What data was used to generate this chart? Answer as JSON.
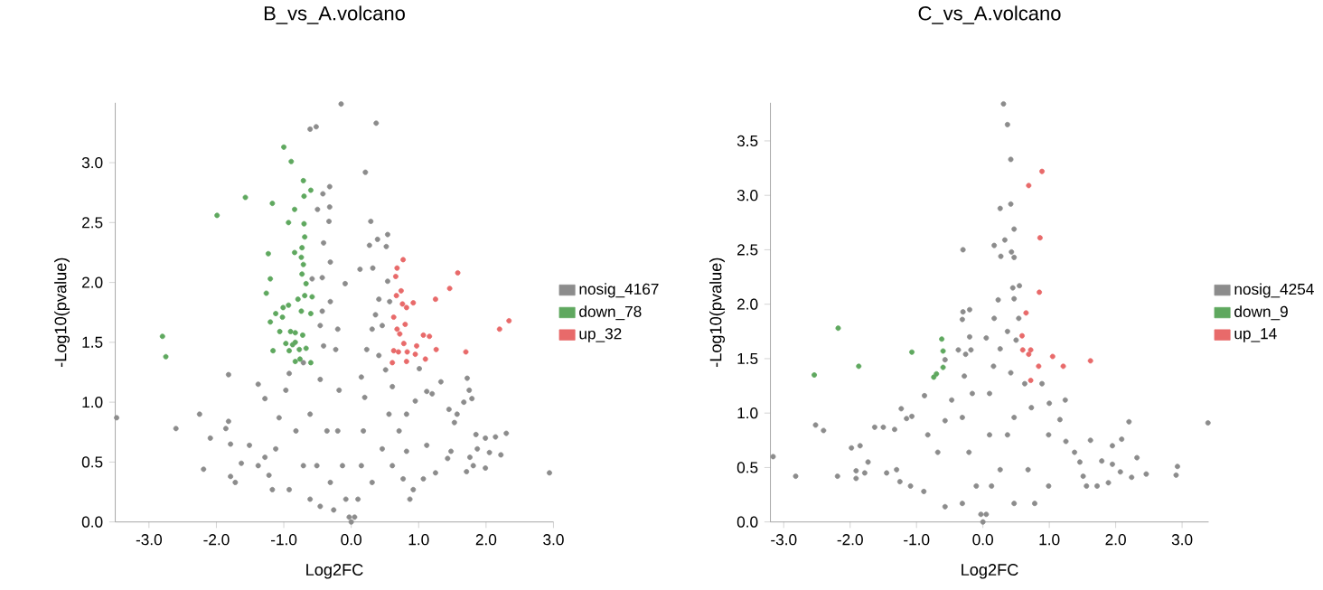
{
  "chart_data": [
    {
      "type": "scatter",
      "title": "B_vs_A.volcano",
      "xlabel": "Log2FC",
      "ylabel": "-Log10(pvalue)",
      "xlim": [
        -3.5,
        3.0
      ],
      "ylim": [
        0,
        3.5
      ],
      "xticks": [
        {
          "value": -3,
          "label": "-3.0"
        },
        {
          "value": -2,
          "label": "-2.0"
        },
        {
          "value": -1,
          "label": "-1.0"
        },
        {
          "value": 0,
          "label": "0.0"
        },
        {
          "value": 1,
          "label": "1.0"
        },
        {
          "value": 2,
          "label": "2.0"
        },
        {
          "value": 3,
          "label": "3.0"
        }
      ],
      "yticks": [
        {
          "value": 0,
          "label": "0.0"
        },
        0.5,
        {
          "value": 1,
          "label": "1.0"
        },
        1.5,
        {
          "value": 2,
          "label": "2.0"
        },
        2.5,
        {
          "value": 3,
          "label": "3.0"
        }
      ],
      "marker": "circle",
      "legend": "right",
      "series": [
        {
          "name": "nosig_4167",
          "color": "#8c8c8c",
          "x": [
            -0.15,
            -0.52,
            -0.61,
            0.37,
            0.21,
            -0.32,
            -0.42,
            -0.32,
            -0.5,
            -0.33,
            0.29,
            0.54,
            0.39,
            0.52,
            -0.41,
            0.27,
            -0.31,
            0.13,
            0.32,
            -0.09,
            0.54,
            -0.43,
            -0.58,
            0.41,
            0.57,
            -3.48,
            -2.6,
            -2.25,
            -1.82,
            -1.82,
            -2.09,
            -2.19,
            -1.86,
            -1.79,
            -1.79,
            -1.72,
            -1.63,
            -1.51,
            -1.38,
            -1.28,
            -1.28,
            2.94,
            2.3,
            2.14,
            1.99,
            1.85,
            1.87,
            2.05,
            2.22,
            1.99,
            1.71,
            1.81,
            1.76,
            1.72,
            1.75,
            1.79,
            1.67,
            1.57,
            1.53,
            1.45,
            1.33,
            1.2,
            1.12,
            1.01,
            0.95,
            0.82,
            1.48,
            1.43,
            1.25,
            1.07,
            0.92,
            0.77,
            1.12,
            -0.92,
            -1.17,
            -1.22,
            -1.38,
            -1.12,
            -1.07,
            -0.97,
            -0.92,
            -0.71,
            -0.61,
            -0.46,
            -0.36,
            -0.46,
            -0.41,
            -0.46,
            -0.43,
            -0.31,
            -0.2,
            -0.23,
            -0.18,
            -0.2,
            -0.13,
            -0.08,
            -0.03,
            0,
            0.05,
            0.1,
            0.15,
            0.18,
            0.2,
            0.15,
            0.23,
            0.31,
            0.36,
            0.46,
            0.41,
            0.51,
            0.61,
            0.56,
            0.46,
            0.31,
            0.61,
            0.71,
            0.82,
            0.87,
            -0.51,
            -0.71,
            -0.82,
            -0.61,
            -0.31,
            -0.26
          ],
          "values": [
            3.49,
            3.3,
            3.28,
            3.33,
            2.92,
            2.8,
            2.74,
            2.63,
            2.61,
            2.51,
            2.51,
            2.4,
            2.36,
            2.3,
            2.33,
            2.31,
            2.17,
            2.11,
            2.12,
            1.99,
            2.01,
            2.04,
            2.03,
            1.86,
            1.84,
            0.87,
            0.78,
            0.9,
            1.23,
            0.84,
            0.7,
            0.44,
            0.78,
            0.65,
            0.38,
            0.33,
            0.49,
            0.64,
            1.15,
            1.03,
            0.54,
            0.41,
            0.74,
            0.71,
            0.7,
            0.73,
            0.61,
            0.58,
            0.56,
            0.45,
            0.42,
            0.47,
            0.54,
            1.2,
            1.1,
            1.03,
            1.0,
            0.9,
            0.83,
            0.94,
            1.17,
            1.07,
            1.09,
            1.28,
            1.01,
            0.9,
            0.59,
            0.53,
            0.41,
            0.36,
            0.27,
            0.36,
            0.64,
            0.27,
            0.27,
            0.39,
            0.47,
            0.61,
            0.87,
            1.1,
            1.24,
            1.33,
            0.19,
            0.13,
            0.76,
            1.19,
            1.47,
            1.64,
            1.76,
            1.84,
            1.61,
            1.44,
            1.1,
            0.76,
            0.47,
            0.19,
            0.04,
            0,
            0.04,
            0.19,
            0.47,
            0.76,
            1.04,
            1.21,
            1.44,
            1.61,
            1.73,
            1.64,
            1.39,
            1.27,
            1.13,
            0.9,
            0.61,
            0.33,
            0.47,
            0.76,
            0.59,
            0.19,
            0.47,
            0.47,
            0.76,
            0.9,
            0.33,
            0.1
          ]
        },
        {
          "name": "down_78",
          "color": "#5fa85f",
          "x": [
            -1.0,
            -0.89,
            -1.57,
            -1.17,
            -1.99,
            -0.71,
            -0.6,
            -0.7,
            -0.84,
            -0.93,
            -0.7,
            -0.69,
            -0.73,
            -0.74,
            -1.23,
            -0.84,
            -0.71,
            -1.2,
            -0.73,
            -0.67,
            -1.26,
            -0.79,
            -0.58,
            -0.69,
            -0.93,
            -1.01,
            -1.12,
            -0.74,
            -0.6,
            -1.2,
            -1.02,
            -1.06,
            -0.9,
            -0.83,
            -0.72,
            -0.83,
            -1.16,
            -0.92,
            -0.77,
            -0.67,
            -0.83,
            -0.76,
            -0.6,
            -2.8,
            -2.75,
            -0.87,
            -0.97
          ],
          "values": [
            3.13,
            3.01,
            2.71,
            2.66,
            2.56,
            2.85,
            2.77,
            2.72,
            2.61,
            2.5,
            2.49,
            2.38,
            2.29,
            2.21,
            2.24,
            2.25,
            2.15,
            2.03,
            2.07,
            1.99,
            1.91,
            1.86,
            1.88,
            1.89,
            1.81,
            1.79,
            1.74,
            1.76,
            1.74,
            1.67,
            1.71,
            1.59,
            1.59,
            1.58,
            1.56,
            1.5,
            1.43,
            1.43,
            1.44,
            1.45,
            1.34,
            1.36,
            1.33,
            1.55,
            1.38,
            1.48,
            1.49
          ]
        },
        {
          "name": "up_32",
          "color": "#e86a6a",
          "x": [
            0.77,
            0.68,
            0.66,
            1.58,
            1.46,
            0.74,
            0.67,
            1.25,
            0.92,
            0.76,
            0.82,
            2.34,
            2.2,
            0.63,
            0.8,
            0.68,
            0.72,
            1.07,
            1.16,
            0.78,
            0.97,
            1.26,
            0.63,
            0.7,
            0.83,
            0.95,
            1.7,
            0.61,
            0.82,
            1.1
          ],
          "values": [
            2.19,
            2.12,
            2.05,
            2.08,
            1.95,
            1.93,
            1.89,
            1.86,
            1.83,
            1.82,
            1.79,
            1.68,
            1.61,
            1.71,
            1.65,
            1.61,
            1.57,
            1.56,
            1.55,
            1.49,
            1.47,
            1.44,
            1.43,
            1.42,
            1.42,
            1.4,
            1.42,
            1.33,
            1.34,
            1.36
          ]
        }
      ]
    },
    {
      "type": "scatter",
      "title": "C_vs_A.volcano",
      "xlabel": "Log2FC",
      "ylabel": "-Log10(pvalue)",
      "xlim": [
        -3.2,
        3.4
      ],
      "ylim": [
        0,
        3.85
      ],
      "xticks": [
        {
          "value": -3,
          "label": "-3.0"
        },
        {
          "value": -2,
          "label": "-2.0"
        },
        {
          "value": -1,
          "label": "-1.0"
        },
        {
          "value": 0,
          "label": "0.0"
        },
        {
          "value": 1,
          "label": "1.0"
        },
        {
          "value": 2,
          "label": "2.0"
        },
        {
          "value": 3,
          "label": "3.0"
        }
      ],
      "yticks": [
        {
          "value": 0,
          "label": "0.0"
        },
        0.5,
        {
          "value": 1,
          "label": "1.0"
        },
        1.5,
        {
          "value": 2,
          "label": "2.0"
        },
        2.5,
        {
          "value": 3,
          "label": "3.0"
        },
        3.5
      ],
      "marker": "circle",
      "legend": "right",
      "series": [
        {
          "name": "nosig_4254",
          "color": "#8c8c8c",
          "x": [
            0.31,
            0.37,
            0.42,
            0.42,
            0.26,
            0.33,
            0.47,
            0.17,
            -0.3,
            0.27,
            0.43,
            0.47,
            0.55,
            0.45,
            0.23,
            0.47,
            -0.2,
            -0.3,
            -0.31,
            0.17,
            0.05,
            -0.2,
            0.5,
            0.54,
            -0.37,
            -0.18,
            -0.57,
            -0.26,
            -0.28,
            -0.88,
            -1.23,
            -1.15,
            -1.07,
            -1.63,
            -1.5,
            -1.33,
            -2.52,
            -2.4,
            -3.16,
            -2.82,
            -2.19,
            -1.98,
            -1.85,
            -1.91,
            -1.91,
            -1.78,
            -1.73,
            -1.45,
            -1.3,
            -1.25,
            -1.09,
            -0.89,
            -0.57,
            -0.68,
            -0.83,
            -0.47,
            -0.57,
            -0.31,
            -0.16,
            -0.21,
            -0.1,
            -0.03,
            0,
            0.05,
            0.13,
            0.1,
            0.1,
            0.16,
            0.26,
            0.37,
            0.42,
            0.63,
            0.89,
            1.0,
            1.24,
            1.16,
            0.73,
            0.99,
            1.25,
            1.38,
            1.46,
            1.51,
            1.62,
            1.79,
            1.95,
            2.09,
            2.2,
            2.32,
            2.46,
            2.24,
            2.07,
            1.89,
            1.72,
            1.56,
            2.93,
            2.91,
            3.39,
            1.95,
            0.99,
            0.78,
            0.47,
            0.26,
            0.37,
            0.47,
            0.68,
            -0.31
          ],
          "values": [
            3.84,
            3.65,
            3.33,
            2.92,
            2.88,
            2.59,
            2.69,
            2.54,
            2.5,
            2.44,
            2.48,
            2.43,
            2.17,
            2.15,
            2.04,
            2.05,
            1.95,
            1.93,
            1.86,
            1.87,
            1.69,
            1.7,
            1.67,
            1.87,
            1.58,
            1.58,
            1.49,
            1.54,
            1.34,
            1.16,
            1.04,
            0.95,
            0.97,
            0.87,
            0.87,
            0.85,
            0.89,
            0.84,
            0.6,
            0.42,
            0.42,
            0.68,
            0.7,
            0.47,
            0.4,
            0.45,
            0.55,
            0.45,
            0.48,
            0.37,
            0.33,
            0.28,
            0.14,
            0.64,
            0.8,
            1.12,
            0.93,
            0.96,
            1.18,
            0.64,
            0.33,
            0.07,
            0,
            0.07,
            0.33,
            0.8,
            1.18,
            1.43,
            1.59,
            1.75,
            1.37,
            1.27,
            1.27,
            1.09,
            1.12,
            0.94,
            1.05,
            0.8,
            0.74,
            0.64,
            0.55,
            0.42,
            0.75,
            0.56,
            0.7,
            0.76,
            0.92,
            0.59,
            0.44,
            0.41,
            0.46,
            0.36,
            0.33,
            0.33,
            0.51,
            0.43,
            0.91,
            0.53,
            0.33,
            0.17,
            0.17,
            0.48,
            0.8,
            0.96,
            0.48,
            0.17
          ]
        },
        {
          "name": "down_9",
          "color": "#5fa85f",
          "x": [
            -2.18,
            -1.87,
            -2.54,
            -1.07,
            -0.62,
            -0.6,
            -0.6,
            -0.7,
            -0.74
          ],
          "values": [
            1.78,
            1.43,
            1.35,
            1.56,
            1.68,
            1.57,
            1.42,
            1.36,
            1.33
          ]
        },
        {
          "name": "up_14",
          "color": "#e86a6a",
          "x": [
            0.89,
            0.69,
            0.86,
            0.85,
            0.65,
            0.59,
            0.6,
            0.72,
            0.69,
            1.05,
            1.21,
            1.62,
            0.84,
            0.72
          ],
          "values": [
            3.22,
            3.09,
            2.61,
            2.11,
            1.92,
            1.71,
            1.58,
            1.58,
            1.54,
            1.52,
            1.43,
            1.48,
            1.43,
            1.3
          ]
        }
      ]
    }
  ]
}
